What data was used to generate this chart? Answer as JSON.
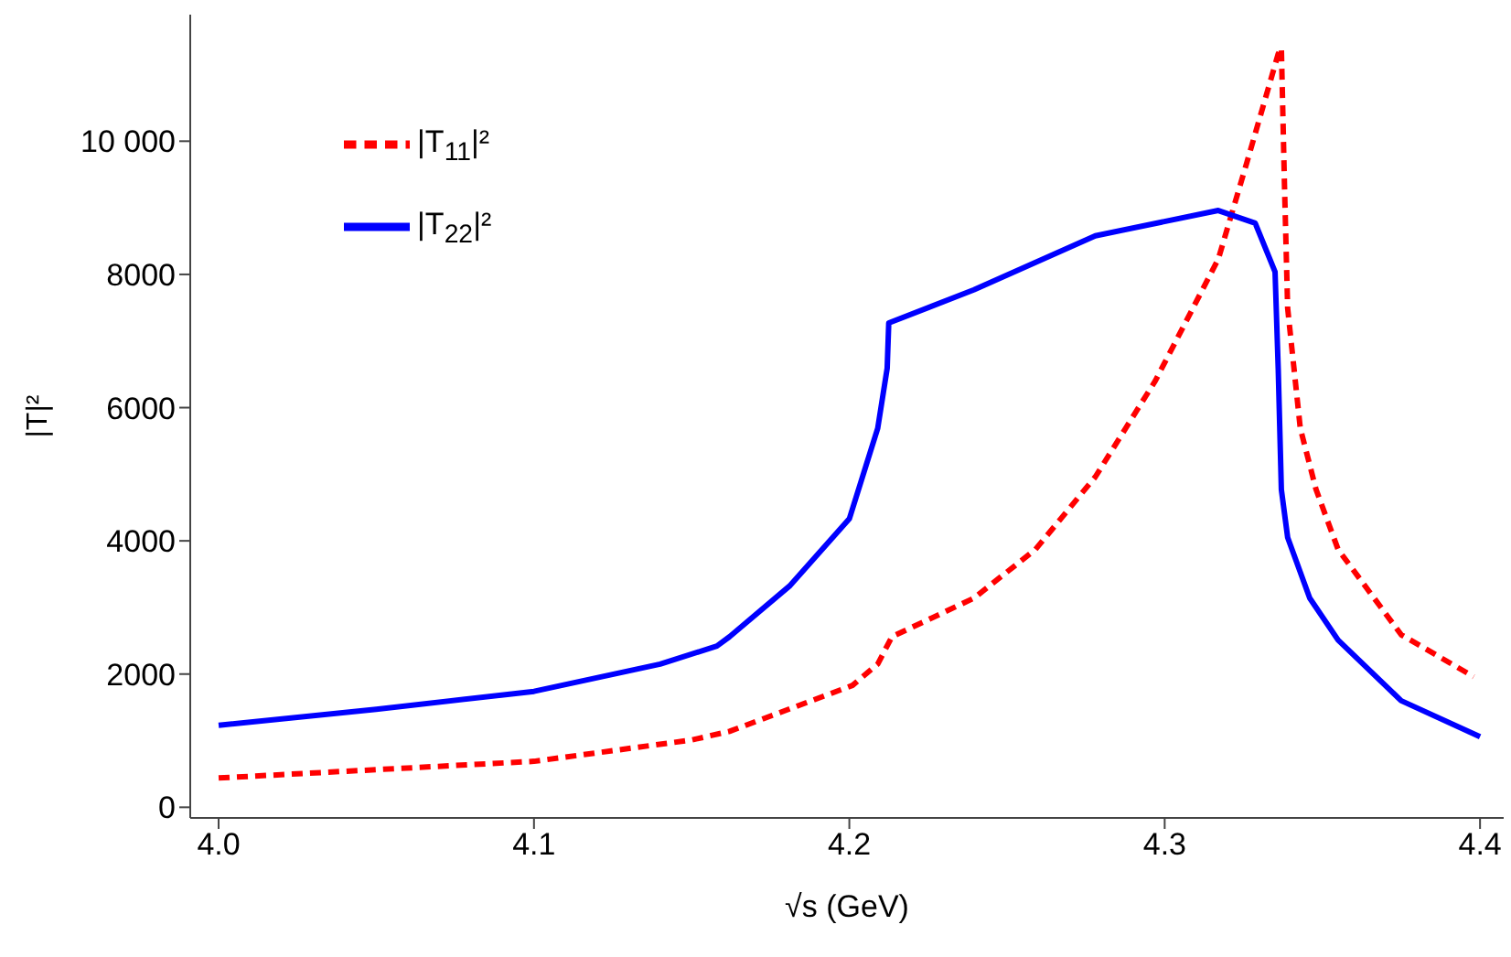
{
  "chart_data": {
    "type": "line",
    "xlabel": "√s (GeV)",
    "ylabel": "|T|²",
    "xlim": [
      3.991,
      4.4075
    ],
    "ylim": [
      -160,
      11900
    ],
    "xticks": [
      {
        "value": 4,
        "label": "4.0"
      },
      4.1,
      4.2,
      4.3,
      4.4
    ],
    "yticks": [
      0,
      2000,
      4000,
      6000,
      8000,
      {
        "value": 10000,
        "label": "10 000"
      }
    ],
    "grid": false,
    "legend": "top left",
    "series": [
      {
        "name": "|T$_{11}$|²",
        "color": "#ff0000",
        "line_style": "dashed",
        "x": [
          4.0,
          4.1,
          4.15,
          4.162,
          4.201,
          4.209,
          4.2135,
          4.2395,
          4.259,
          4.278,
          4.297,
          4.317,
          4.326,
          4.336,
          4.337,
          4.338,
          4.339,
          4.343,
          4.348,
          4.355,
          4.375,
          4.398
        ],
        "values": [
          440,
          690,
          1010,
          1140,
          1830,
          2150,
          2560,
          3140,
          3870,
          4960,
          6400,
          8230,
          9670,
          11310,
          11400,
          9320,
          7490,
          5690,
          4770,
          3870,
          2590,
          1960
        ]
      },
      {
        "name": "|T$_{22}$|²",
        "color": "#0000ff",
        "line_style": "solid",
        "x": [
          4.0,
          4.05,
          4.1,
          4.14,
          4.158,
          4.162,
          4.181,
          4.2,
          4.209,
          4.212,
          4.2125,
          4.2395,
          4.278,
          4.317,
          4.3287,
          4.335,
          4.336,
          4.337,
          4.339,
          4.346,
          4.355,
          4.375,
          4.4
        ],
        "values": [
          1230,
          1470,
          1740,
          2150,
          2420,
          2560,
          3320,
          4330,
          5690,
          6590,
          7270,
          7770,
          8580,
          8960,
          8770,
          8040,
          6590,
          4770,
          4050,
          3140,
          2510,
          1600,
          1060
        ]
      }
    ]
  }
}
